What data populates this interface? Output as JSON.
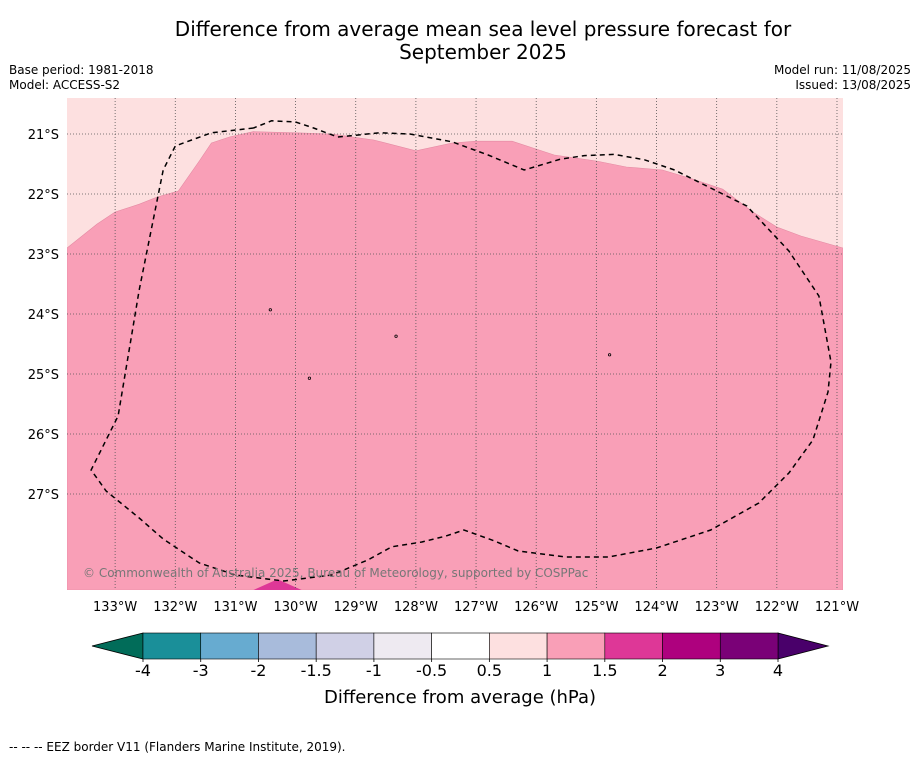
{
  "title_line1": "Difference from average mean sea level pressure forecast for",
  "title_line2": "September 2025",
  "base_period": "Base period: 1981-2018",
  "model": "Model: ACCESS-S2",
  "model_run": "Model run: 11/08/2025",
  "issued": "Issued: 13/08/2025",
  "copyright": "© Commonwealth of Australia 2025, Bureau of Meteorology, supported by COSPPac",
  "footer_note": "-- -- -- EEZ border V11 (Flanders Marine Institute, 2019).",
  "map": {
    "lon_range": [
      -133.8,
      -120.9
    ],
    "lat_range": [
      -20.4,
      -28.6
    ],
    "lon_ticks": [
      {
        "value": -133,
        "label": "133°W"
      },
      {
        "value": -132,
        "label": "132°W"
      },
      {
        "value": -131,
        "label": "131°W"
      },
      {
        "value": -130,
        "label": "130°W"
      },
      {
        "value": -129,
        "label": "129°W"
      },
      {
        "value": -128,
        "label": "128°W"
      },
      {
        "value": -127,
        "label": "127°W"
      },
      {
        "value": -126,
        "label": "126°W"
      },
      {
        "value": -125,
        "label": "125°W"
      },
      {
        "value": -124,
        "label": "124°W"
      },
      {
        "value": -123,
        "label": "123°W"
      },
      {
        "value": -122,
        "label": "122°W"
      },
      {
        "value": -121,
        "label": "121°W"
      }
    ],
    "lat_ticks": [
      {
        "value": -21,
        "label": "21°S"
      },
      {
        "value": -22,
        "label": "22°S"
      },
      {
        "value": -23,
        "label": "23°S"
      },
      {
        "value": -24,
        "label": "24°S"
      },
      {
        "value": -25,
        "label": "25°S"
      },
      {
        "value": -26,
        "label": "26°S"
      },
      {
        "value": -27,
        "label": "27°S"
      }
    ],
    "background_color": "#fde0e0",
    "region_1_1p5": {
      "color": "#f99fb7",
      "boundary": [
        [
          -133.8,
          -22.9
        ],
        [
          -133.3,
          -22.5
        ],
        [
          -133.0,
          -22.3
        ],
        [
          -132.6,
          -22.17
        ],
        [
          -132.3,
          -22.05
        ],
        [
          -131.95,
          -21.95
        ],
        [
          -131.6,
          -21.45
        ],
        [
          -131.4,
          -21.15
        ],
        [
          -131.1,
          -21.05
        ],
        [
          -130.7,
          -20.96
        ],
        [
          -130.0,
          -20.98
        ],
        [
          -129.4,
          -21.0
        ],
        [
          -128.7,
          -21.1
        ],
        [
          -128.0,
          -21.28
        ],
        [
          -127.4,
          -21.15
        ],
        [
          -127.0,
          -21.12
        ],
        [
          -126.4,
          -21.12
        ],
        [
          -125.7,
          -21.35
        ],
        [
          -125.0,
          -21.45
        ],
        [
          -124.5,
          -21.55
        ],
        [
          -123.9,
          -21.6
        ],
        [
          -123.4,
          -21.75
        ],
        [
          -122.9,
          -21.92
        ],
        [
          -122.4,
          -22.3
        ],
        [
          -122.0,
          -22.55
        ],
        [
          -121.6,
          -22.7
        ],
        [
          -120.9,
          -22.9
        ],
        [
          -120.9,
          -28.6
        ],
        [
          -133.8,
          -28.6
        ]
      ]
    },
    "region_1p5_2": {
      "color": "#de3797",
      "boundary": [
        [
          -130.7,
          -28.6
        ],
        [
          -130.3,
          -28.42
        ],
        [
          -129.9,
          -28.6
        ]
      ]
    },
    "eez_border": [
      [
        -130.7,
        -20.9
      ],
      [
        -131.4,
        -20.98
      ],
      [
        -132.0,
        -21.2
      ],
      [
        -132.2,
        -21.6
      ],
      [
        -132.6,
        -23.6
      ],
      [
        -132.95,
        -25.7
      ],
      [
        -133.4,
        -26.6
      ],
      [
        -133.15,
        -26.95
      ],
      [
        -132.6,
        -27.4
      ],
      [
        -132.2,
        -27.75
      ],
      [
        -131.6,
        -28.15
      ],
      [
        -131.0,
        -28.35
      ],
      [
        -130.2,
        -28.45
      ],
      [
        -129.4,
        -28.35
      ],
      [
        -128.8,
        -28.1
      ],
      [
        -128.4,
        -27.88
      ],
      [
        -127.9,
        -27.8
      ],
      [
        -127.5,
        -27.7
      ],
      [
        -127.2,
        -27.6
      ],
      [
        -126.7,
        -27.78
      ],
      [
        -126.3,
        -27.95
      ],
      [
        -125.5,
        -28.05
      ],
      [
        -124.8,
        -28.05
      ],
      [
        -124.0,
        -27.9
      ],
      [
        -123.1,
        -27.6
      ],
      [
        -122.3,
        -27.15
      ],
      [
        -121.8,
        -26.65
      ],
      [
        -121.4,
        -26.1
      ],
      [
        -121.15,
        -25.3
      ],
      [
        -121.1,
        -24.8
      ],
      [
        -121.3,
        -23.7
      ],
      [
        -121.8,
        -22.95
      ],
      [
        -122.5,
        -22.2
      ],
      [
        -123.2,
        -21.85
      ],
      [
        -123.7,
        -21.6
      ],
      [
        -124.2,
        -21.43
      ],
      [
        -124.7,
        -21.34
      ],
      [
        -125.2,
        -21.36
      ],
      [
        -125.6,
        -21.42
      ],
      [
        -126.2,
        -21.6
      ],
      [
        -126.8,
        -21.35
      ],
      [
        -127.4,
        -21.13
      ],
      [
        -128.1,
        -21.0
      ],
      [
        -128.6,
        -20.98
      ],
      [
        -129.3,
        -21.05
      ],
      [
        -129.7,
        -20.9
      ],
      [
        -130.0,
        -20.8
      ],
      [
        -130.4,
        -20.78
      ],
      [
        -130.7,
        -20.9
      ]
    ],
    "islands": [
      [
        -130.42,
        -23.93
      ],
      [
        -129.77,
        -25.07
      ],
      [
        -128.33,
        -24.37
      ],
      [
        -124.78,
        -24.68
      ]
    ]
  },
  "colorbar": {
    "label": "Difference from average (hPa)",
    "colors": [
      "#1a8f99",
      "#67abd0",
      "#a8bbdb",
      "#d0d0e6",
      "#eeeaf1",
      "#ffffff",
      "#fde0e0",
      "#f99fb7",
      "#de3797",
      "#ae017e",
      "#7a0177"
    ],
    "under_color": "#016c59",
    "over_color": "#49006a",
    "tick_labels": [
      "-4",
      "-3",
      "-2",
      "-1.5",
      "-1",
      "-0.5",
      "0.5",
      "1",
      "1.5",
      "2",
      "3",
      "4"
    ]
  }
}
